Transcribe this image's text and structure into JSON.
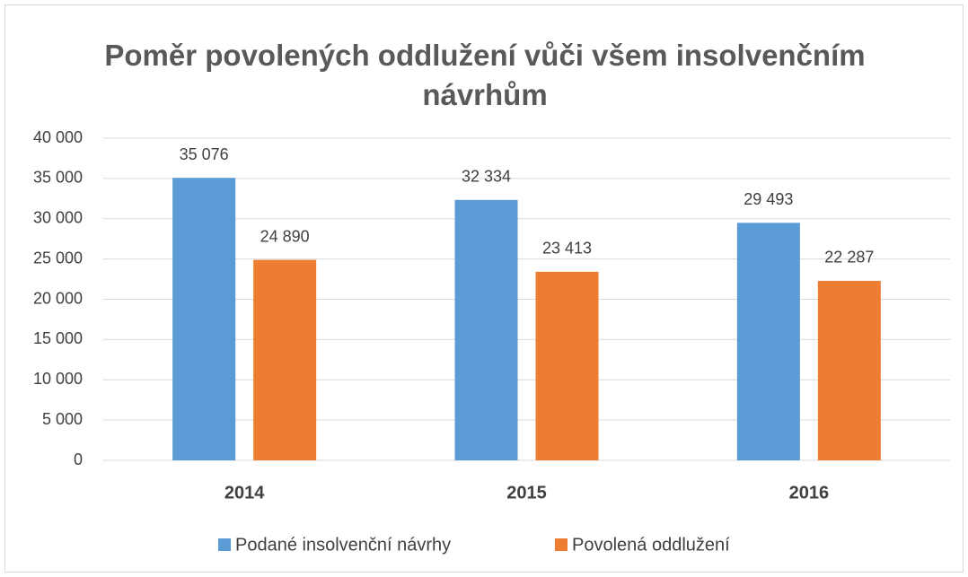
{
  "chart_data": {
    "type": "bar",
    "title": "Poměr povolených oddlužení vůči všem insolvenčním návrhům",
    "categories": [
      "2014",
      "2015",
      "2016"
    ],
    "series": [
      {
        "name": "Podané insolvenční návrhy",
        "color": "#5b9bd5",
        "values": [
          35076,
          32334,
          29493
        ],
        "value_labels": [
          "35 076",
          "32 334",
          "29 493"
        ]
      },
      {
        "name": "Povolená oddlužení",
        "color": "#ed7d31",
        "values": [
          24890,
          23413,
          22287
        ],
        "value_labels": [
          "24 890",
          "23 413",
          "22 287"
        ]
      }
    ],
    "ylim": [
      0,
      40000
    ],
    "yticks": [
      0,
      {
        "value": 5000,
        "label": "5 000"
      },
      {
        "value": 10000,
        "label": "10 000"
      },
      {
        "value": 15000,
        "label": "15 000"
      },
      {
        "value": 20000,
        "label": "20 000"
      },
      {
        "value": 25000,
        "label": "25 000"
      },
      {
        "value": 30000,
        "label": "30 000"
      },
      {
        "value": 35000,
        "label": "35 000"
      },
      {
        "value": 40000,
        "label": "40 000"
      }
    ],
    "grid": true,
    "legend": "bottom"
  }
}
